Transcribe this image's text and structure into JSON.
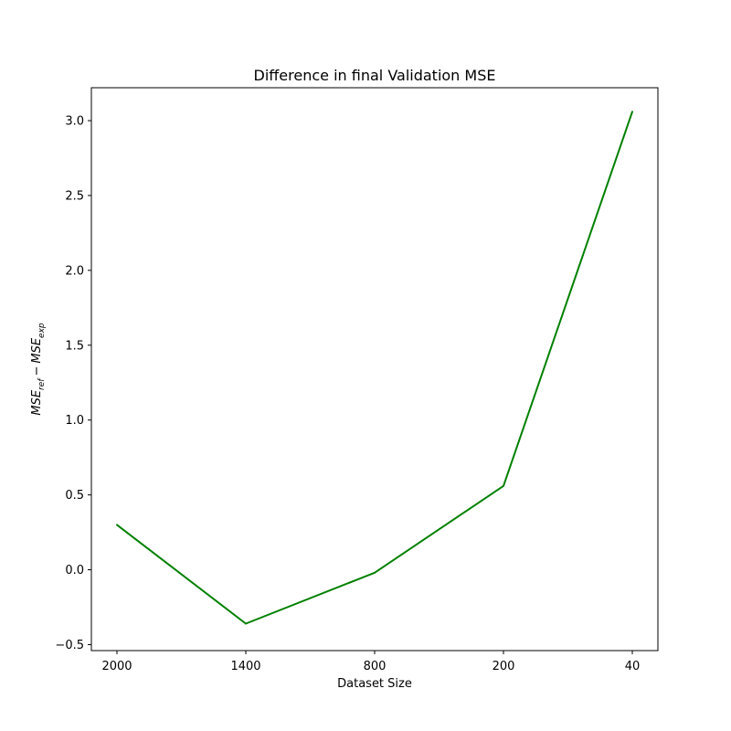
{
  "chart_data": {
    "type": "line",
    "title": "Difference in final Validation MSE",
    "xlabel": "Dataset Size",
    "ylabel": {
      "base1": "MSE",
      "sub1": "ref",
      "op": "−",
      "base2": "MSE",
      "sub2": "exp"
    },
    "categories": [
      "2000",
      "1400",
      "800",
      "200",
      "40"
    ],
    "series": [
      {
        "values": [
          0.3,
          -0.36,
          -0.02,
          0.56,
          3.06
        ],
        "color": "#008000"
      }
    ],
    "ylim": [
      -0.54,
      3.22
    ],
    "yticks": [
      -0.5,
      0.0,
      0.5,
      1.0,
      1.5,
      2.0,
      2.5,
      3.0
    ],
    "ytick_labels": [
      "−0.5",
      "0.0",
      "0.5",
      "1.0",
      "1.5",
      "2.0",
      "2.5",
      "3.0"
    ],
    "grid": false,
    "legend": "none"
  }
}
